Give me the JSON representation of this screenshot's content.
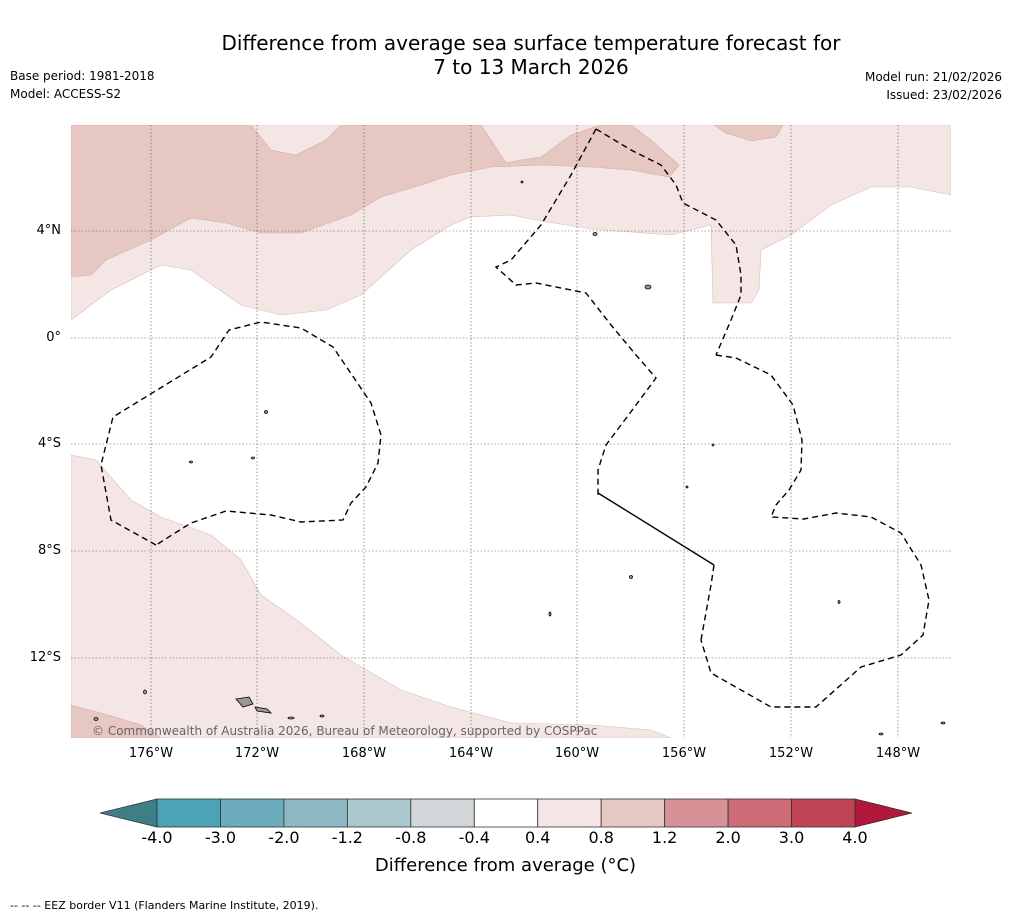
{
  "header": {
    "title_line1": "Difference from average sea surface temperature forecast for",
    "title_line2": "7 to 13 March 2026",
    "base_period": "Base period: 1981-2018",
    "model": "Model: ACCESS-S2",
    "model_run": "Model run: 21/02/2026",
    "issued": "Issued: 23/02/2026"
  },
  "map": {
    "lat_labels": [
      "4°N",
      "0°",
      "4°S",
      "8°S",
      "12°S"
    ],
    "lon_labels": [
      "176°W",
      "172°W",
      "168°W",
      "164°W",
      "160°W",
      "156°W",
      "152°W",
      "148°W"
    ],
    "copyright": "© Commonwealth of Australia 2026, Bureau of Meteorology, supported by COSPPac",
    "colors": {
      "light_warm": "#f4e6e4",
      "mid_warm": "#e7c7c2",
      "land": "#999999",
      "eez_line": "#000000"
    }
  },
  "colorbar": {
    "ticks": [
      "-4.0",
      "-3.0",
      "-2.0",
      "-1.2",
      "-0.8",
      "-0.4",
      "0.4",
      "0.8",
      "1.2",
      "2.0",
      "3.0",
      "4.0"
    ],
    "colors": [
      "#3d7e87",
      "#4ba3b5",
      "#6cacbc",
      "#8db9c5",
      "#a9c7cd",
      "#d3d6d8",
      "#ffffff",
      "#f4e6e4",
      "#e7c7c2",
      "#d79298",
      "#cd6b76",
      "#c04554",
      "#b0173a"
    ],
    "label": "Difference from average (°C)"
  },
  "footnote": "-- -- -- EEZ border V11 (Flanders Marine Institute, 2019)."
}
